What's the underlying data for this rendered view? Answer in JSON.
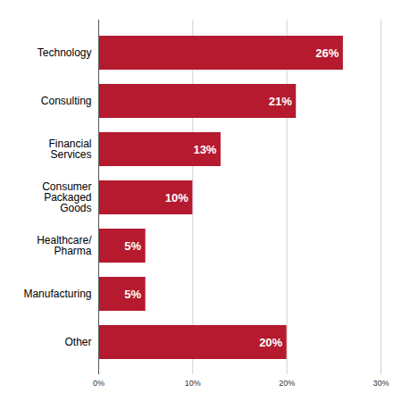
{
  "chart_data": {
    "type": "bar",
    "orientation": "horizontal",
    "categories": [
      "Technology",
      "Consulting",
      "Financial\nServices",
      "Consumer\nPackaged\nGoods",
      "Healthcare/\nPharma",
      "Manufacturing",
      "Other"
    ],
    "values": [
      26,
      21,
      13,
      10,
      5,
      5,
      20
    ],
    "value_labels": [
      "26%",
      "21%",
      "13%",
      "10%",
      "5%",
      "5%",
      "20%"
    ],
    "data_labels": true,
    "color": "#b51a2e",
    "xlim": [
      0,
      30
    ],
    "xticks": [
      {
        "value": 0,
        "label": "0%"
      },
      {
        "value": 10,
        "label": "10%"
      },
      {
        "value": 20,
        "label": "20%"
      },
      {
        "value": 30,
        "label": "30%"
      }
    ],
    "grid": true
  }
}
